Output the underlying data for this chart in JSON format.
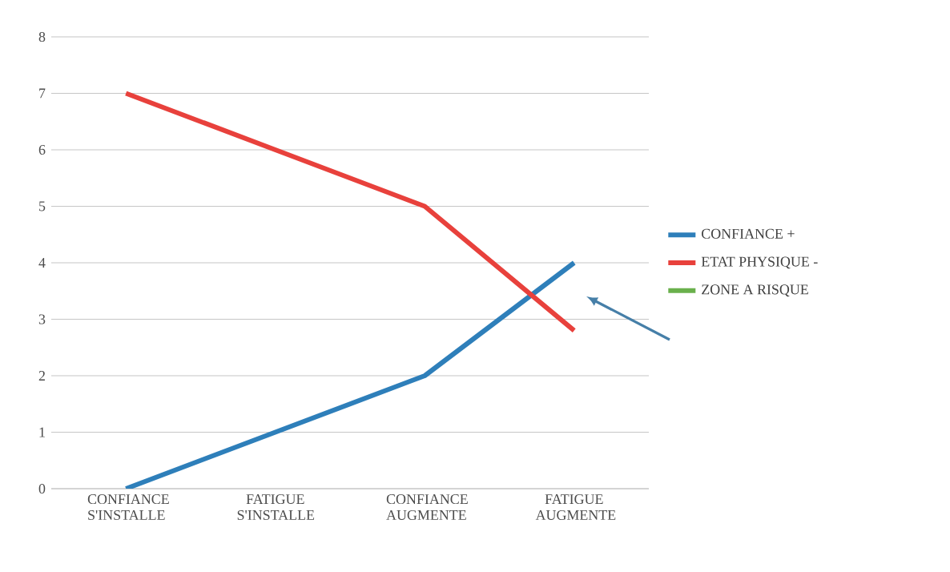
{
  "chart_data": {
    "type": "line",
    "categories": [
      "CONFIANCE S'INSTALLE",
      "FATIGUE S'INSTALLE",
      "CONFIANCE AUGMENTE",
      "FATIGUE AUGMENTE"
    ],
    "series": [
      {
        "name": "CONFIANCE +",
        "color": "#2e7fba",
        "values": [
          0,
          1,
          2,
          4
        ]
      },
      {
        "name": "ETAT PHYSIQUE -",
        "color": "#e8413c",
        "values": [
          7,
          6,
          5,
          2.8
        ]
      },
      {
        "name": "ZONE A RISQUE",
        "color": "#6ab04c",
        "values": [
          null,
          null,
          null,
          null
        ]
      }
    ],
    "ylim": [
      0,
      8
    ],
    "yticks": [
      0,
      1,
      2,
      3,
      4,
      5,
      6,
      7,
      8
    ],
    "grid": "y",
    "legend": "right",
    "marker": "none",
    "line_style": "solid"
  }
}
